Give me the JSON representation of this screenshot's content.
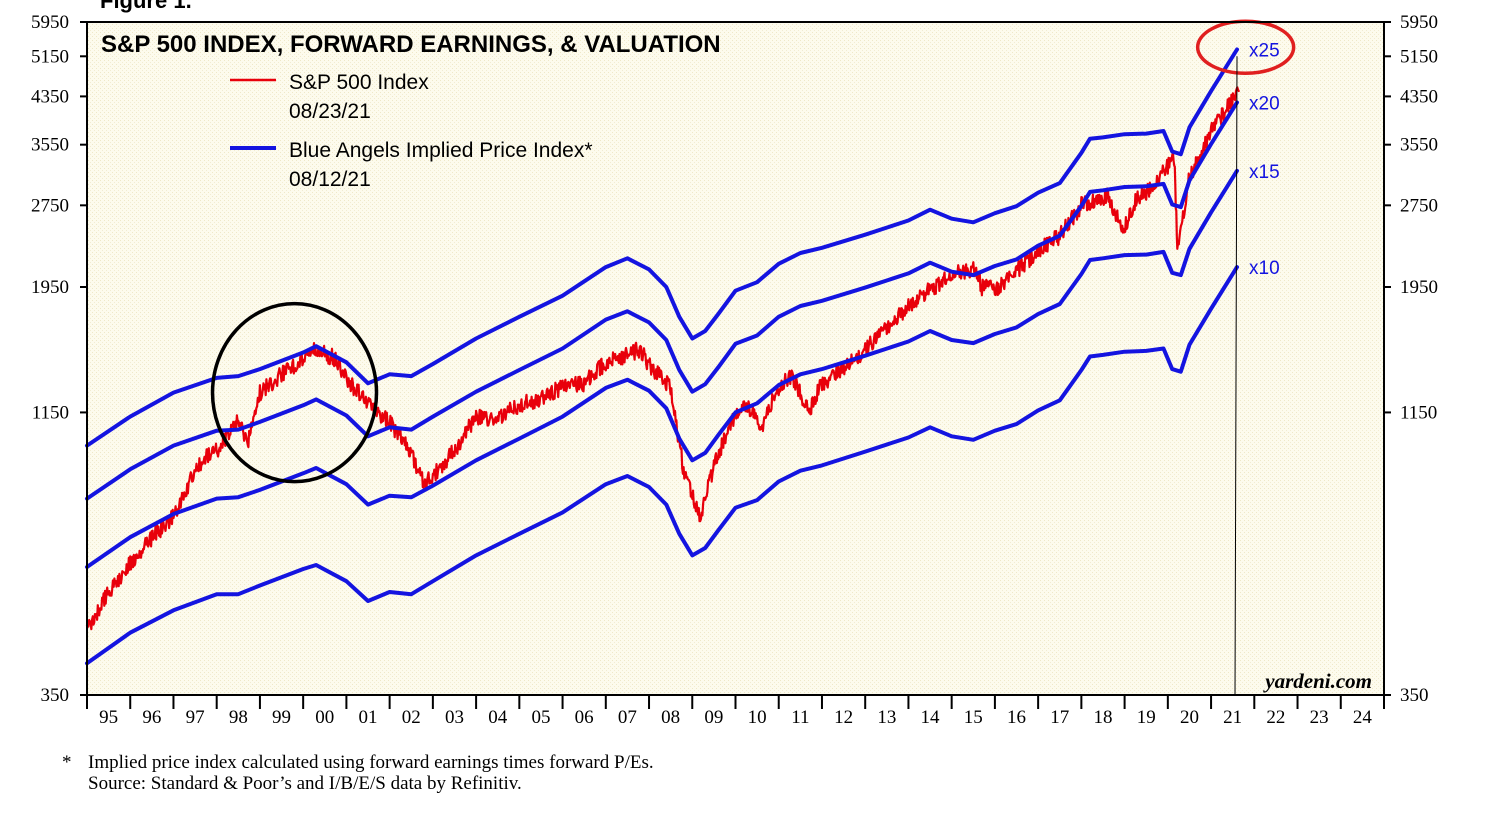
{
  "figure_label": "Figure 1.",
  "chart_data": {
    "type": "line",
    "title": "S&P 500 INDEX, FORWARD EARNINGS, & VALUATION",
    "y_scale": "log",
    "ylim": [
      350,
      5950
    ],
    "xlim": [
      1995.0,
      2025.0
    ],
    "y_ticks": [
      350,
      1150,
      1950,
      2750,
      3550,
      4350,
      5150,
      5950
    ],
    "x_tick_labels": [
      "95",
      "96",
      "97",
      "98",
      "99",
      "00",
      "01",
      "02",
      "03",
      "04",
      "05",
      "06",
      "07",
      "08",
      "09",
      "10",
      "11",
      "12",
      "13",
      "14",
      "15",
      "16",
      "17",
      "18",
      "19",
      "20",
      "21",
      "22",
      "23",
      "24"
    ],
    "grid": false,
    "legend_position": "top-left",
    "legend": [
      {
        "name": "S&P 500 Index",
        "date": "08/23/21",
        "color": "#e8000b"
      },
      {
        "name": "Blue Angels Implied Price Index*",
        "date": "08/12/21",
        "color": "#1414e0"
      }
    ],
    "series": [
      {
        "name": "S&P 500 Index",
        "color": "#e8000b",
        "x": [
          1995.0,
          1995.5,
          1996.0,
          1996.5,
          1997.0,
          1997.5,
          1997.8,
          1998.0,
          1998.5,
          1998.7,
          1999.0,
          1999.5,
          2000.0,
          2000.2,
          2000.7,
          2001.0,
          2001.7,
          2002.0,
          2002.5,
          2002.8,
          2003.0,
          2003.5,
          2004.0,
          2004.5,
          2005.0,
          2005.5,
          2006.0,
          2006.5,
          2007.0,
          2007.8,
          2008.0,
          2008.5,
          2008.8,
          2009.2,
          2009.5,
          2010.0,
          2010.3,
          2010.6,
          2011.0,
          2011.3,
          2011.7,
          2012.0,
          2012.5,
          2013.0,
          2013.5,
          2014.0,
          2014.5,
          2015.0,
          2015.5,
          2015.7,
          2016.1,
          2016.5,
          2017.0,
          2017.5,
          2018.0,
          2018.6,
          2018.98,
          2019.3,
          2019.6,
          2020.0,
          2020.15,
          2020.22,
          2020.5,
          2021.0,
          2021.3,
          2021.64
        ],
        "y": [
          460,
          540,
          610,
          680,
          740,
          900,
          960,
          980,
          1120,
          1000,
          1250,
          1350,
          1430,
          1500,
          1450,
          1320,
          1150,
          1100,
          970,
          850,
          880,
          980,
          1130,
          1120,
          1190,
          1220,
          1280,
          1300,
          1420,
          1500,
          1400,
          1280,
          900,
          740,
          920,
          1150,
          1180,
          1080,
          1280,
          1350,
          1150,
          1300,
          1380,
          1500,
          1650,
          1800,
          1930,
          2050,
          2100,
          1950,
          1950,
          2090,
          2270,
          2420,
          2750,
          2850,
          2500,
          2850,
          2950,
          3250,
          3350,
          2300,
          3100,
          3750,
          4050,
          4450
        ]
      },
      {
        "name": "Blue Angels x25",
        "label": "x25",
        "color": "#1414e0",
        "x": [
          1995.0,
          1996.0,
          1997.0,
          1998.0,
          1998.5,
          1999.0,
          2000.0,
          2000.3,
          2001.0,
          2001.5,
          2002.0,
          2002.5,
          2003.0,
          2004.0,
          2005.0,
          2006.0,
          2007.0,
          2007.5,
          2008.0,
          2008.4,
          2008.7,
          2009.0,
          2009.3,
          2009.6,
          2010.0,
          2010.5,
          2011.0,
          2011.5,
          2012.0,
          2013.0,
          2014.0,
          2014.5,
          2015.0,
          2015.5,
          2016.0,
          2016.5,
          2017.0,
          2017.5,
          2018.0,
          2018.2,
          2018.5,
          2019.0,
          2019.5,
          2019.9,
          2020.1,
          2020.3,
          2020.5,
          2021.0,
          2021.6
        ],
        "y": [
          1000,
          1130,
          1250,
          1330,
          1340,
          1380,
          1480,
          1520,
          1420,
          1300,
          1350,
          1340,
          1410,
          1570,
          1720,
          1880,
          2120,
          2200,
          2100,
          1950,
          1720,
          1570,
          1620,
          1740,
          1920,
          1990,
          2150,
          2250,
          2300,
          2430,
          2580,
          2700,
          2600,
          2560,
          2660,
          2740,
          2900,
          3020,
          3430,
          3640,
          3660,
          3710,
          3720,
          3760,
          3450,
          3410,
          3820,
          4450,
          5300
        ]
      },
      {
        "name": "Blue Angels x20",
        "label": "x20",
        "color": "#1414e0",
        "x": [
          1995.0,
          1996.0,
          1997.0,
          1998.0,
          1998.5,
          1999.0,
          2000.0,
          2000.3,
          2001.0,
          2001.5,
          2002.0,
          2002.5,
          2003.0,
          2004.0,
          2005.0,
          2006.0,
          2007.0,
          2007.5,
          2008.0,
          2008.4,
          2008.7,
          2009.0,
          2009.3,
          2009.6,
          2010.0,
          2010.5,
          2011.0,
          2011.5,
          2012.0,
          2013.0,
          2014.0,
          2014.5,
          2015.0,
          2015.5,
          2016.0,
          2016.5,
          2017.0,
          2017.5,
          2018.0,
          2018.2,
          2018.5,
          2019.0,
          2019.5,
          2019.9,
          2020.1,
          2020.3,
          2020.5,
          2021.0,
          2021.6
        ],
        "y": [
          800,
          905,
          1000,
          1065,
          1070,
          1105,
          1185,
          1215,
          1135,
          1040,
          1080,
          1070,
          1130,
          1255,
          1375,
          1505,
          1700,
          1760,
          1680,
          1560,
          1375,
          1255,
          1295,
          1390,
          1535,
          1590,
          1720,
          1800,
          1840,
          1945,
          2065,
          2160,
          2080,
          2050,
          2130,
          2190,
          2320,
          2420,
          2745,
          2910,
          2930,
          2970,
          2980,
          3010,
          2760,
          2730,
          3055,
          3560,
          4240
        ]
      },
      {
        "name": "Blue Angels x15",
        "label": "x15",
        "color": "#1414e0",
        "x": [
          1995.0,
          1996.0,
          1997.0,
          1998.0,
          1998.5,
          1999.0,
          2000.0,
          2000.3,
          2001.0,
          2001.5,
          2002.0,
          2002.5,
          2003.0,
          2004.0,
          2005.0,
          2006.0,
          2007.0,
          2007.5,
          2008.0,
          2008.4,
          2008.7,
          2009.0,
          2009.3,
          2009.6,
          2010.0,
          2010.5,
          2011.0,
          2011.5,
          2012.0,
          2013.0,
          2014.0,
          2014.5,
          2015.0,
          2015.5,
          2016.0,
          2016.5,
          2017.0,
          2017.5,
          2018.0,
          2018.2,
          2018.5,
          2019.0,
          2019.5,
          2019.9,
          2020.1,
          2020.3,
          2020.5,
          2021.0,
          2021.6
        ],
        "y": [
          600,
          680,
          750,
          800,
          805,
          830,
          890,
          910,
          850,
          780,
          810,
          805,
          845,
          940,
          1030,
          1130,
          1275,
          1320,
          1260,
          1170,
          1030,
          940,
          970,
          1045,
          1150,
          1195,
          1290,
          1350,
          1380,
          1460,
          1550,
          1620,
          1560,
          1540,
          1600,
          1645,
          1740,
          1815,
          2060,
          2185,
          2200,
          2230,
          2235,
          2260,
          2070,
          2050,
          2290,
          2670,
          3180
        ]
      },
      {
        "name": "Blue Angels x10",
        "label": "x10",
        "color": "#1414e0",
        "x": [
          1995.0,
          1996.0,
          1997.0,
          1998.0,
          1998.5,
          1999.0,
          2000.0,
          2000.3,
          2001.0,
          2001.5,
          2002.0,
          2002.5,
          2003.0,
          2004.0,
          2005.0,
          2006.0,
          2007.0,
          2007.5,
          2008.0,
          2008.4,
          2008.7,
          2009.0,
          2009.3,
          2009.6,
          2010.0,
          2010.5,
          2011.0,
          2011.5,
          2012.0,
          2013.0,
          2014.0,
          2014.5,
          2015.0,
          2015.5,
          2016.0,
          2016.5,
          2017.0,
          2017.5,
          2018.0,
          2018.2,
          2018.5,
          2019.0,
          2019.5,
          2019.9,
          2020.1,
          2020.3,
          2020.5,
          2021.0,
          2021.6
        ],
        "y": [
          400,
          455,
          500,
          535,
          535,
          555,
          595,
          605,
          565,
          520,
          540,
          535,
          565,
          630,
          690,
          755,
          850,
          880,
          840,
          780,
          690,
          630,
          650,
          700,
          770,
          795,
          860,
          900,
          920,
          975,
          1035,
          1080,
          1040,
          1025,
          1065,
          1095,
          1160,
          1210,
          1375,
          1455,
          1465,
          1485,
          1490,
          1505,
          1380,
          1365,
          1530,
          1780,
          2120
        ]
      }
    ],
    "annotations": [
      {
        "type": "circle",
        "color": "#000000",
        "cx": 1999.8,
        "cy": 1250,
        "note": ""
      },
      {
        "type": "ellipse",
        "color": "#e02020",
        "cx": 2021.8,
        "cy": 5350,
        "note": ""
      }
    ],
    "watermark": "yardeni.com"
  },
  "footnote": {
    "star": "*",
    "line1": "Implied price index calculated using forward earnings times forward P/Es.",
    "line2": "Source: Standard & Poor’s and I/B/E/S data by Refinitiv."
  },
  "colors": {
    "plot_background": "#fdfbed",
    "sp500": "#e8000b",
    "blue_angels": "#1414e0",
    "frame": "#000000"
  }
}
